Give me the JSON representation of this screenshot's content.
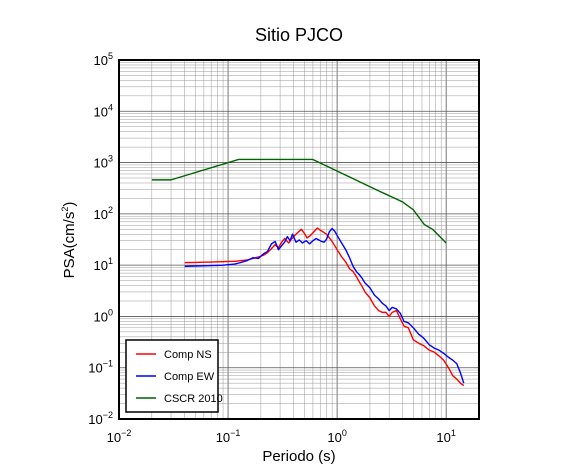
{
  "chart_data": {
    "type": "line",
    "title": "Sitio PJCO",
    "xlabel": "Periodo (s)",
    "ylabel_main": "PSA(cm/s",
    "ylabel_sup": "2",
    "ylabel_close": ")",
    "x_scale": "log",
    "y_scale": "log",
    "xlim": [
      0.01,
      20
    ],
    "ylim": [
      0.01,
      100000
    ],
    "grid": true,
    "legend_position": "bottom-left",
    "x_ticks": [
      {
        "base": "10",
        "exp": "−2",
        "value": 0.01
      },
      {
        "base": "10",
        "exp": "−1",
        "value": 0.1
      },
      {
        "base": "10",
        "exp": "0",
        "value": 1
      },
      {
        "base": "10",
        "exp": "1",
        "value": 10
      }
    ],
    "y_ticks": [
      {
        "base": "10",
        "exp": "−2",
        "value": 0.01
      },
      {
        "base": "10",
        "exp": "−1",
        "value": 0.1
      },
      {
        "base": "10",
        "exp": "0",
        "value": 1
      },
      {
        "base": "10",
        "exp": "1",
        "value": 10
      },
      {
        "base": "10",
        "exp": "2",
        "value": 100
      },
      {
        "base": "10",
        "exp": "3",
        "value": 1000
      },
      {
        "base": "10",
        "exp": "4",
        "value": 10000
      },
      {
        "base": "10",
        "exp": "5",
        "value": 100000
      }
    ],
    "series": [
      {
        "name": "Comp NS",
        "color": "#ff0000",
        "points": [
          [
            0.04,
            11.2
          ],
          [
            0.05,
            11.3
          ],
          [
            0.06,
            11.4
          ],
          [
            0.07,
            11.5
          ],
          [
            0.08,
            11.6
          ],
          [
            0.09,
            11.7
          ],
          [
            0.1,
            11.8
          ],
          [
            0.115,
            11.9
          ],
          [
            0.13,
            12.2
          ],
          [
            0.15,
            12.6
          ],
          [
            0.17,
            13.5
          ],
          [
            0.19,
            14.5
          ],
          [
            0.21,
            15.5
          ],
          [
            0.23,
            17.5
          ],
          [
            0.25,
            21
          ],
          [
            0.27,
            25
          ],
          [
            0.29,
            22
          ],
          [
            0.31,
            28
          ],
          [
            0.33,
            33
          ],
          [
            0.36,
            27
          ],
          [
            0.38,
            32
          ],
          [
            0.41,
            38
          ],
          [
            0.44,
            44
          ],
          [
            0.47,
            50
          ],
          [
            0.5,
            42
          ],
          [
            0.53,
            34
          ],
          [
            0.57,
            38
          ],
          [
            0.62,
            46
          ],
          [
            0.66,
            53
          ],
          [
            0.7,
            48
          ],
          [
            0.75,
            44
          ],
          [
            0.8,
            40
          ],
          [
            0.85,
            34
          ],
          [
            0.9,
            29
          ],
          [
            1.0,
            20
          ],
          [
            1.1,
            14.5
          ],
          [
            1.2,
            11.5
          ],
          [
            1.3,
            8.5
          ],
          [
            1.4,
            7.5
          ],
          [
            1.5,
            6.0
          ],
          [
            1.6,
            4.7
          ],
          [
            1.7,
            3.8
          ],
          [
            1.8,
            3.0
          ],
          [
            2.0,
            2.3
          ],
          [
            2.2,
            1.6
          ],
          [
            2.4,
            1.3
          ],
          [
            2.6,
            1.2
          ],
          [
            2.8,
            1.2
          ],
          [
            3.0,
            1.0
          ],
          [
            3.2,
            1.2
          ],
          [
            3.5,
            1.3
          ],
          [
            3.8,
            0.9
          ],
          [
            4.1,
            0.65
          ],
          [
            4.5,
            0.6
          ],
          [
            5.0,
            0.35
          ],
          [
            5.6,
            0.3
          ],
          [
            6.2,
            0.27
          ],
          [
            7.0,
            0.22
          ],
          [
            7.8,
            0.2
          ],
          [
            8.6,
            0.17
          ],
          [
            9.5,
            0.14
          ],
          [
            10.5,
            0.1
          ],
          [
            11.5,
            0.07
          ],
          [
            12.5,
            0.06
          ],
          [
            13.5,
            0.05
          ],
          [
            14.5,
            0.045
          ]
        ]
      },
      {
        "name": "Comp EW",
        "color": "#0000ff",
        "points": [
          [
            0.04,
            9.5
          ],
          [
            0.05,
            9.6
          ],
          [
            0.06,
            9.7
          ],
          [
            0.07,
            9.8
          ],
          [
            0.08,
            9.9
          ],
          [
            0.09,
            10
          ],
          [
            0.1,
            10.2
          ],
          [
            0.115,
            10.5
          ],
          [
            0.13,
            11.2
          ],
          [
            0.15,
            12.3
          ],
          [
            0.17,
            14.0
          ],
          [
            0.19,
            13.5
          ],
          [
            0.21,
            16.5
          ],
          [
            0.23,
            18.5
          ],
          [
            0.25,
            26
          ],
          [
            0.27,
            29
          ],
          [
            0.29,
            20
          ],
          [
            0.31,
            24
          ],
          [
            0.33,
            28
          ],
          [
            0.35,
            36
          ],
          [
            0.37,
            30
          ],
          [
            0.39,
            40
          ],
          [
            0.42,
            28
          ],
          [
            0.45,
            31
          ],
          [
            0.48,
            27
          ],
          [
            0.52,
            30
          ],
          [
            0.56,
            26
          ],
          [
            0.6,
            30
          ],
          [
            0.64,
            33
          ],
          [
            0.68,
            31
          ],
          [
            0.72,
            29
          ],
          [
            0.76,
            28
          ],
          [
            0.8,
            32
          ],
          [
            0.85,
            45
          ],
          [
            0.9,
            52
          ],
          [
            0.95,
            46
          ],
          [
            1.0,
            38
          ],
          [
            1.1,
            27
          ],
          [
            1.2,
            20
          ],
          [
            1.3,
            14
          ],
          [
            1.4,
            9.5
          ],
          [
            1.5,
            7.5
          ],
          [
            1.6,
            6.5
          ],
          [
            1.7,
            5.5
          ],
          [
            1.8,
            4.5
          ],
          [
            2.0,
            3.6
          ],
          [
            2.2,
            2.6
          ],
          [
            2.4,
            2.2
          ],
          [
            2.6,
            1.8
          ],
          [
            2.8,
            1.6
          ],
          [
            3.0,
            1.3
          ],
          [
            3.2,
            1.5
          ],
          [
            3.5,
            1.4
          ],
          [
            3.8,
            1.15
          ],
          [
            4.1,
            0.8
          ],
          [
            4.5,
            0.75
          ],
          [
            5.0,
            0.6
          ],
          [
            5.6,
            0.45
          ],
          [
            6.2,
            0.38
          ],
          [
            7.0,
            0.28
          ],
          [
            7.8,
            0.24
          ],
          [
            8.6,
            0.22
          ],
          [
            9.5,
            0.19
          ],
          [
            10.5,
            0.16
          ],
          [
            11.5,
            0.14
          ],
          [
            12.5,
            0.12
          ],
          [
            13.5,
            0.08
          ],
          [
            14.5,
            0.05
          ]
        ]
      },
      {
        "name": "CSCR 2010",
        "color": "#006400",
        "points": [
          [
            0.02,
            460
          ],
          [
            0.03,
            460
          ],
          [
            0.125,
            1150
          ],
          [
            0.6,
            1150
          ],
          [
            2.5,
            270
          ],
          [
            4.0,
            170
          ],
          [
            5.0,
            120
          ],
          [
            6.3,
            62
          ],
          [
            7.5,
            50
          ],
          [
            10.0,
            27
          ]
        ]
      }
    ]
  }
}
